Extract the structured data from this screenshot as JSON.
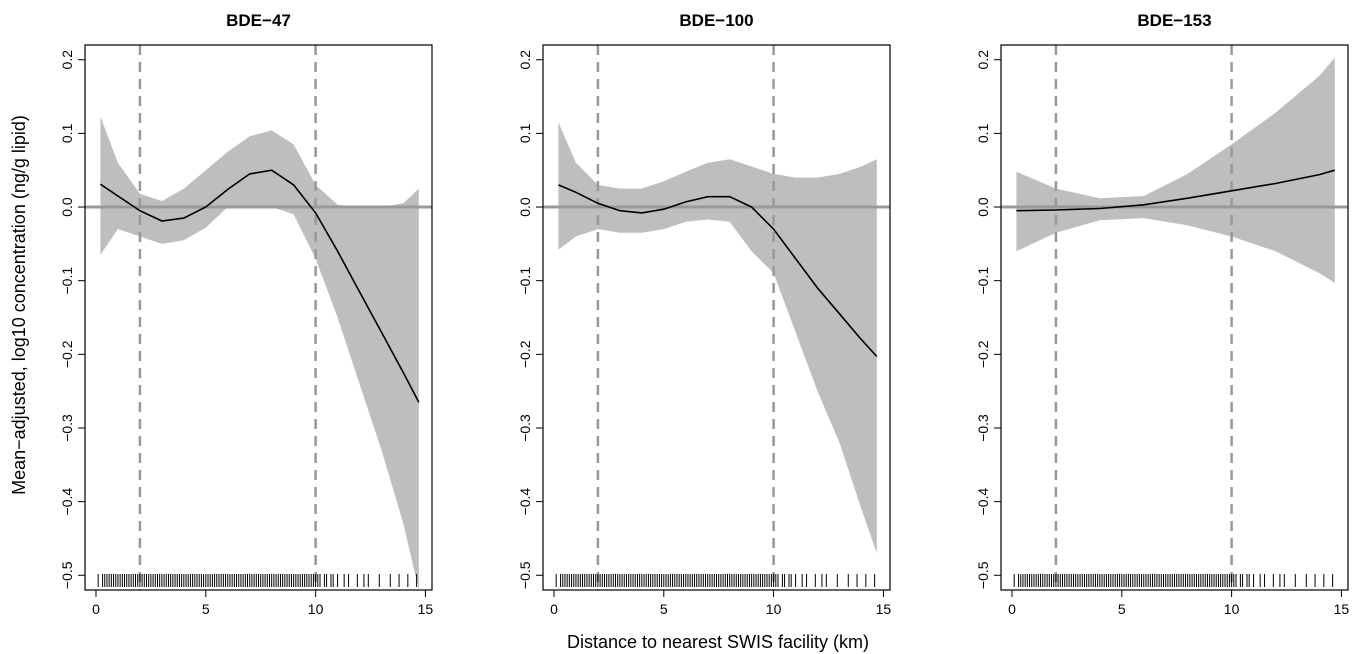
{
  "figure": {
    "xlabel": "Distance to nearest SWIS facility (km)",
    "ylabel": "Mean−adjusted, log10 concentration (ng/g lipid)"
  },
  "colors": {
    "band": "#bebebe",
    "curve": "#000000",
    "reference": "#999999",
    "frame": "#000000"
  },
  "chart_data": [
    {
      "type": "line",
      "title": "BDE−47",
      "xlim": [
        -0.5,
        15.3
      ],
      "ylim": [
        -0.52,
        0.22
      ],
      "xticks": [
        0,
        5,
        10,
        15
      ],
      "yticks": [
        -0.5,
        -0.4,
        -0.3,
        -0.2,
        -0.1,
        0.0,
        0.1,
        0.2
      ],
      "ytick_labels": [
        "−0.5",
        "−0.4",
        "−0.3",
        "−0.2",
        "−0.1",
        "0.0",
        "0.1",
        "0.2"
      ],
      "reference_hline": 0.0,
      "vlines": [
        2,
        10
      ],
      "grid": false,
      "series": [
        {
          "x": [
            0.2,
            1,
            2,
            3,
            4,
            5,
            6,
            7,
            8,
            9,
            10,
            11,
            12,
            13,
            14,
            14.7
          ],
          "y": [
            0.031,
            0.015,
            -0.005,
            -0.019,
            -0.015,
            0.0,
            0.024,
            0.045,
            0.05,
            0.03,
            -0.008,
            -0.06,
            -0.115,
            -0.17,
            -0.225,
            -0.265
          ],
          "lower": [
            -0.065,
            -0.03,
            -0.04,
            -0.05,
            -0.045,
            -0.028,
            0.0,
            0.0,
            0.0,
            -0.01,
            -0.07,
            -0.15,
            -0.24,
            -0.33,
            -0.43,
            -0.52
          ],
          "upper": [
            0.123,
            0.06,
            0.018,
            0.008,
            0.025,
            0.05,
            0.075,
            0.096,
            0.104,
            0.085,
            0.03,
            0.003,
            0.0,
            0.0,
            0.005,
            0.025
          ]
        }
      ]
    },
    {
      "type": "line",
      "title": "BDE−100",
      "xlim": [
        -0.5,
        15.3
      ],
      "ylim": [
        -0.52,
        0.22
      ],
      "xticks": [
        0,
        5,
        10,
        15
      ],
      "yticks": [
        -0.5,
        -0.4,
        -0.3,
        -0.2,
        -0.1,
        0.0,
        0.1,
        0.2
      ],
      "ytick_labels": [
        "−0.5",
        "−0.4",
        "−0.3",
        "−0.2",
        "−0.1",
        "0.0",
        "0.1",
        "0.2"
      ],
      "reference_hline": 0.0,
      "vlines": [
        2,
        10
      ],
      "grid": false,
      "series": [
        {
          "x": [
            0.2,
            1,
            2,
            3,
            4,
            5,
            6,
            7,
            8,
            9,
            10,
            11,
            12,
            13,
            14,
            14.7
          ],
          "y": [
            0.03,
            0.02,
            0.005,
            -0.005,
            -0.008,
            -0.003,
            0.007,
            0.014,
            0.014,
            0.0,
            -0.03,
            -0.07,
            -0.11,
            -0.145,
            -0.18,
            -0.203
          ],
          "lower": [
            -0.058,
            -0.04,
            -0.03,
            -0.035,
            -0.035,
            -0.03,
            -0.02,
            -0.017,
            -0.02,
            -0.06,
            -0.09,
            -0.17,
            -0.25,
            -0.32,
            -0.41,
            -0.47
          ],
          "upper": [
            0.115,
            0.06,
            0.03,
            0.025,
            0.025,
            0.035,
            0.048,
            0.06,
            0.065,
            0.055,
            0.045,
            0.04,
            0.04,
            0.045,
            0.055,
            0.065
          ]
        }
      ]
    },
    {
      "type": "line",
      "title": "BDE−153",
      "xlim": [
        -0.5,
        15.3
      ],
      "ylim": [
        -0.52,
        0.22
      ],
      "xticks": [
        0,
        5,
        10,
        15
      ],
      "yticks": [
        -0.5,
        -0.4,
        -0.3,
        -0.2,
        -0.1,
        0.0,
        0.1,
        0.2
      ],
      "ytick_labels": [
        "−0.5",
        "−0.4",
        "−0.3",
        "−0.2",
        "−0.1",
        "0.0",
        "0.1",
        "0.2"
      ],
      "reference_hline": 0.0,
      "vlines": [
        2,
        10
      ],
      "grid": false,
      "series": [
        {
          "x": [
            0.2,
            2,
            4,
            6,
            8,
            10,
            12,
            14,
            14.7
          ],
          "y": [
            -0.005,
            -0.004,
            -0.002,
            0.003,
            0.012,
            0.022,
            0.032,
            0.044,
            0.05
          ],
          "lower": [
            -0.06,
            -0.035,
            -0.018,
            -0.015,
            -0.025,
            -0.04,
            -0.06,
            -0.09,
            -0.103
          ],
          "upper": [
            0.048,
            0.025,
            0.012,
            0.015,
            0.045,
            0.085,
            0.128,
            0.178,
            0.203
          ]
        }
      ]
    }
  ],
  "rug": {
    "x": [
      0.1,
      0.3,
      0.4,
      0.5,
      0.6,
      0.7,
      0.8,
      0.9,
      1.0,
      1.1,
      1.2,
      1.3,
      1.4,
      1.5,
      1.6,
      1.7,
      1.8,
      1.9,
      2.0,
      2.1,
      2.2,
      2.3,
      2.4,
      2.5,
      2.6,
      2.7,
      2.8,
      2.9,
      3.0,
      3.1,
      3.2,
      3.3,
      3.4,
      3.5,
      3.6,
      3.7,
      3.8,
      3.9,
      4.0,
      4.1,
      4.2,
      4.3,
      4.4,
      4.5,
      4.6,
      4.7,
      4.8,
      4.9,
      5.0,
      5.1,
      5.2,
      5.3,
      5.4,
      5.5,
      5.6,
      5.7,
      5.8,
      5.9,
      6.0,
      6.1,
      6.2,
      6.3,
      6.4,
      6.5,
      6.6,
      6.7,
      6.8,
      6.9,
      7.0,
      7.1,
      7.2,
      7.3,
      7.4,
      7.5,
      7.6,
      7.7,
      7.8,
      7.9,
      8.0,
      8.1,
      8.2,
      8.3,
      8.4,
      8.5,
      8.6,
      8.7,
      8.8,
      8.9,
      9.0,
      9.1,
      9.2,
      9.3,
      9.4,
      9.5,
      9.6,
      9.7,
      9.8,
      9.9,
      10.0,
      10.1,
      10.2,
      10.4,
      10.5,
      10.7,
      10.8,
      11.0,
      11.3,
      11.5,
      11.9,
      12.2,
      12.4,
      12.9,
      13.4,
      13.8,
      14.2,
      14.6
    ]
  }
}
